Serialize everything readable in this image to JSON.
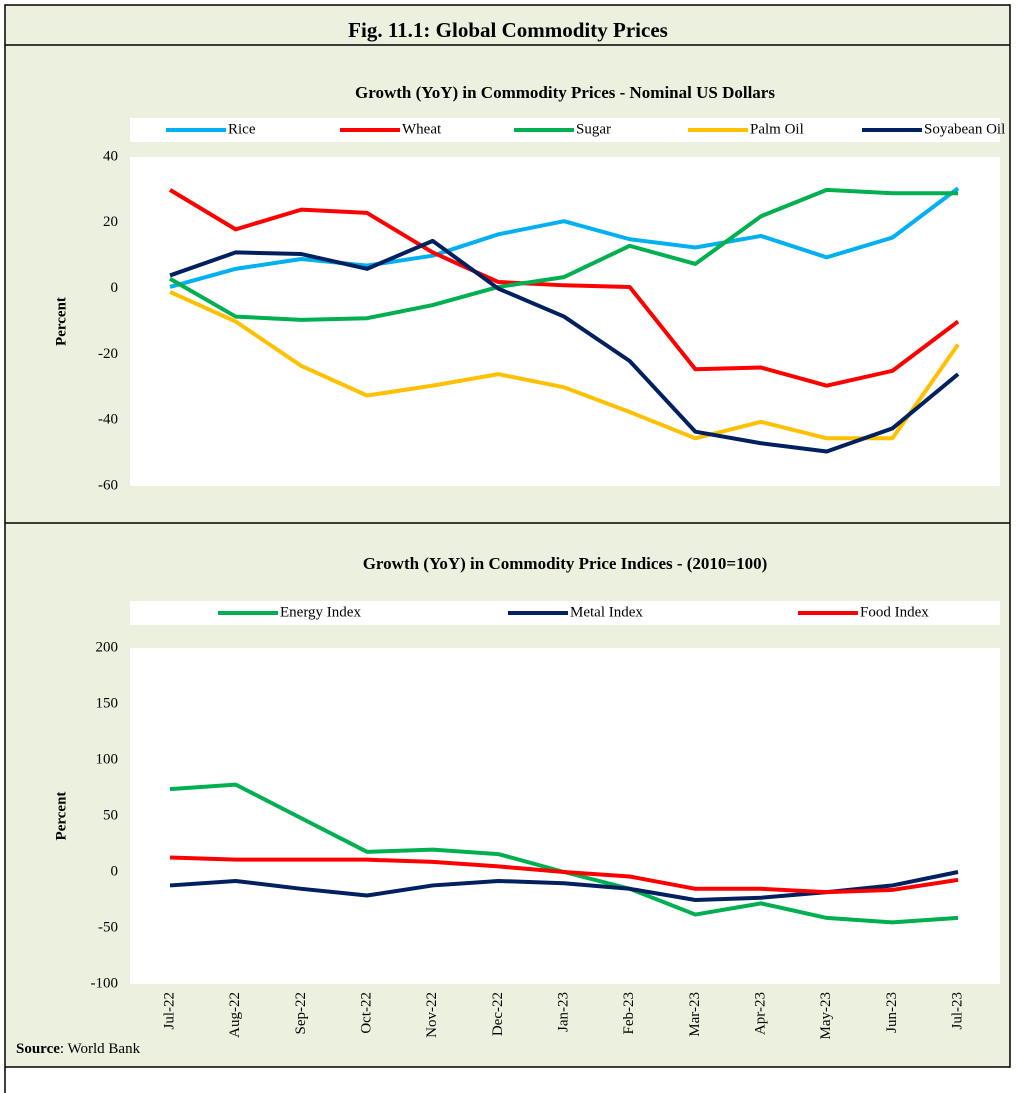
{
  "figure_title": "Fig. 11.1: Global Commodity Prices",
  "source": {
    "label": "Source",
    "text": ": World Bank"
  },
  "chart_data": [
    {
      "type": "line",
      "title": "Growth (YoY) in Commodity Prices - Nominal US Dollars",
      "y_label": "Percent",
      "ylim": [
        -60,
        40
      ],
      "yticks": [
        -60,
        -40,
        -20,
        0,
        20,
        40
      ],
      "grid": false,
      "legend": "top",
      "series": [
        {
          "name": "Rice",
          "color": "#00b0f0",
          "values": [
            0.5,
            6,
            9,
            7,
            10,
            16.5,
            20.5,
            15,
            12.5,
            16,
            9.5,
            15.5,
            30.5
          ]
        },
        {
          "name": "Wheat",
          "color": "#ff0000",
          "values": [
            30,
            18,
            24,
            23,
            11,
            2,
            1,
            0.5,
            -24.5,
            -24,
            -29.5,
            -25,
            -10
          ]
        },
        {
          "name": "Sugar",
          "color": "#00b050",
          "values": [
            3,
            -8.5,
            -9.5,
            -9,
            -5,
            0.5,
            3.5,
            13,
            7.5,
            22,
            30,
            29,
            29
          ]
        },
        {
          "name": "Palm Oil",
          "color": "#ffc000",
          "values": [
            -1,
            -10,
            -23.5,
            -32.5,
            -29.5,
            -26,
            -30,
            -37.5,
            -45.5,
            -40.5,
            -45.5,
            -45.5,
            -17
          ]
        },
        {
          "name": "Soyabean Oil",
          "color": "#002060",
          "values": [
            4,
            11,
            10.5,
            6,
            14.5,
            0,
            -8.5,
            -22,
            -43.5,
            -47,
            -49.5,
            -42.5,
            -26
          ]
        }
      ]
    },
    {
      "type": "line",
      "title": "Growth (YoY) in Commodity Price Indices -   (2010=100)",
      "y_label": "Percent",
      "categories": [
        "Jul-22",
        "Aug-22",
        "Sep-22",
        "Oct-22",
        "Nov-22",
        "Dec-22",
        "Jan-23",
        "Feb-23",
        "Mar-23",
        "Apr-23",
        "May-23",
        "Jun-23",
        "Jul-23"
      ],
      "ylim": [
        -100,
        200
      ],
      "yticks": [
        -100,
        -50,
        0,
        50,
        100,
        150,
        200
      ],
      "grid": false,
      "legend": "top",
      "series": [
        {
          "name": "Energy Index",
          "color": "#00b050",
          "values": [
            74,
            78,
            48,
            18,
            20,
            16,
            0,
            -15,
            -38,
            -28,
            -41,
            -45,
            -41
          ]
        },
        {
          "name": "Metal Index",
          "color": "#002060",
          "values": [
            -12,
            -8,
            -15,
            -21,
            -12,
            -8,
            -10,
            -15,
            -25,
            -23,
            -18,
            -12,
            0
          ]
        },
        {
          "name": "Food Index",
          "color": "#ff0000",
          "values": [
            13,
            11,
            11,
            11,
            9,
            5,
            0,
            -4,
            -15,
            -15,
            -18,
            -16,
            -7
          ]
        }
      ]
    }
  ]
}
